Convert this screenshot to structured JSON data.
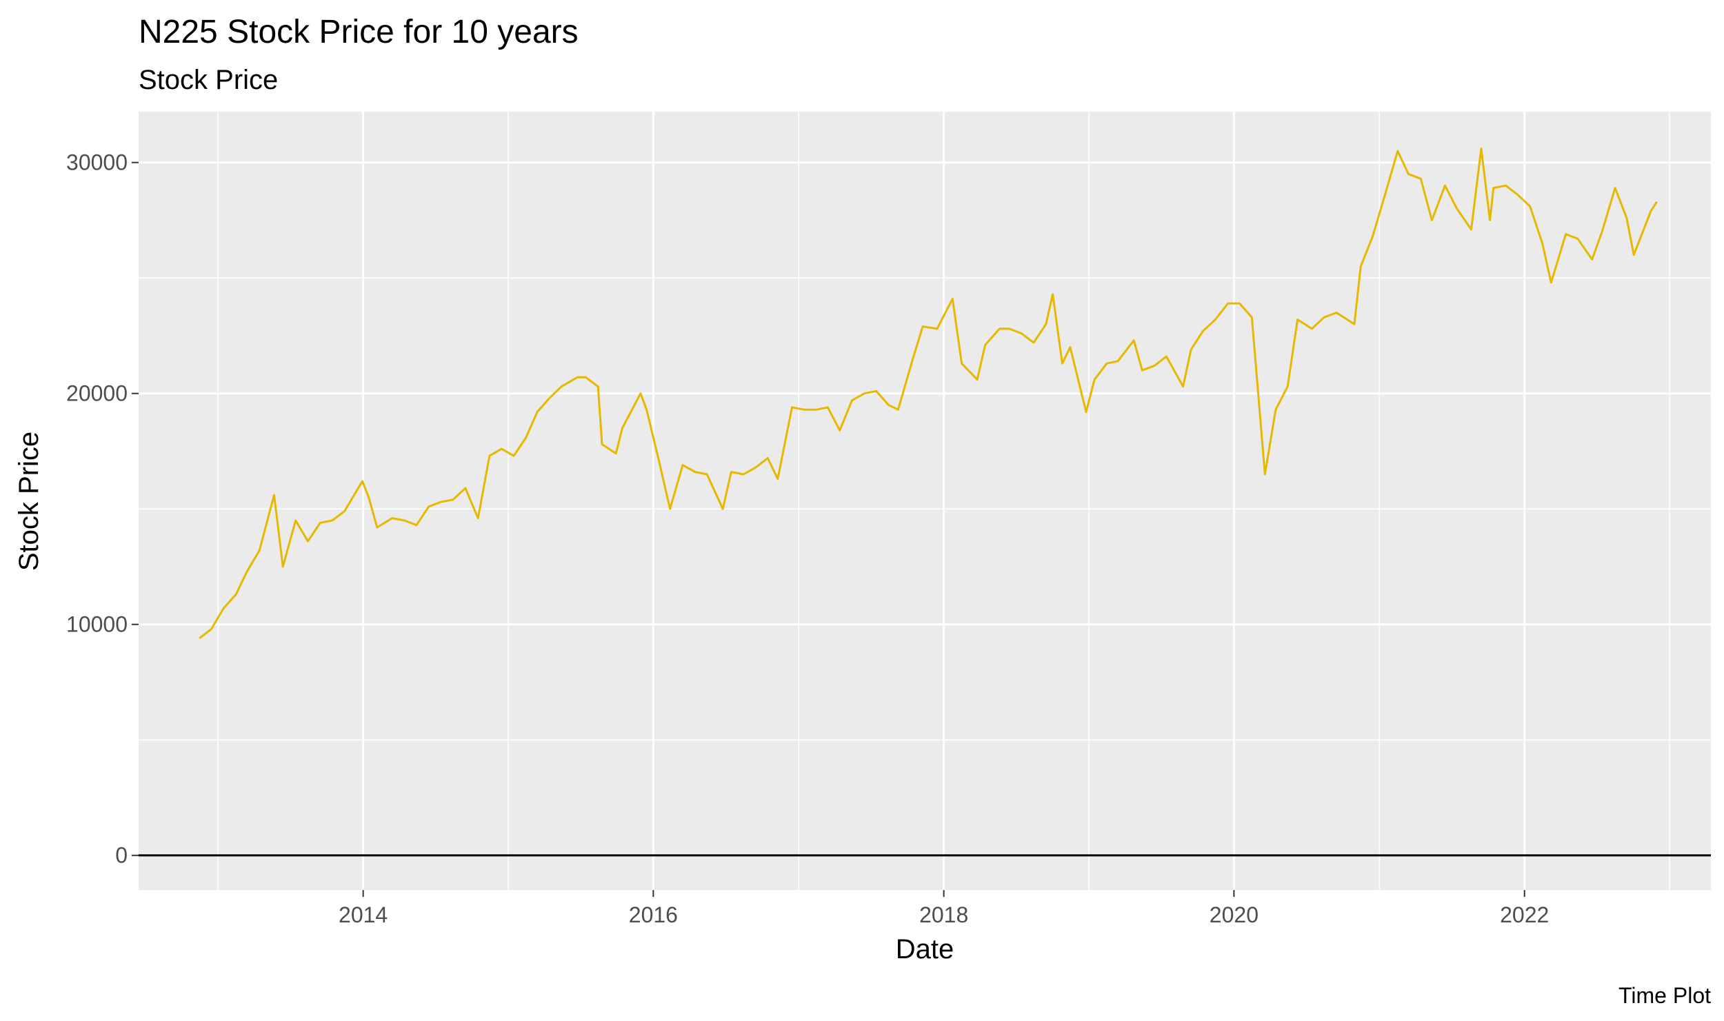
{
  "chart_data": {
    "type": "line",
    "title": "N225 Stock Price for 10 years",
    "subtitle": "Stock Price",
    "xlabel": "Date",
    "ylabel": "Stock Price",
    "caption": "Time Plot",
    "x_tick_labels": [
      "2014",
      "2016",
      "2018",
      "2020",
      "2022"
    ],
    "y_tick_labels": [
      "0",
      "10000",
      "20000",
      "30000"
    ],
    "xlim": [
      "2012-06-15",
      "2023-04-15"
    ],
    "ylim": [
      -1500,
      32200
    ],
    "grid": true,
    "reference_line_y": 0,
    "colors": {
      "line": "#E7B800",
      "panel": "#EBEBEB",
      "grid": "#FFFFFF",
      "reference": "#000000"
    },
    "series": [
      {
        "x": [
          "2012-11-15",
          "2012-12-15",
          "2013-01-15",
          "2013-02-15",
          "2013-03-15",
          "2013-04-15",
          "2013-05-22",
          "2013-06-13",
          "2013-07-15",
          "2013-08-15",
          "2013-09-15",
          "2013-10-15",
          "2013-11-15",
          "2013-12-30",
          "2014-01-15",
          "2014-02-05",
          "2014-03-15",
          "2014-04-15",
          "2014-05-15",
          "2014-06-15",
          "2014-07-15",
          "2014-08-15",
          "2014-09-15",
          "2014-10-17",
          "2014-11-15",
          "2014-12-15",
          "2015-01-15",
          "2015-02-15",
          "2015-03-15",
          "2015-04-15",
          "2015-05-15",
          "2015-06-24",
          "2015-07-15",
          "2015-08-15",
          "2015-08-25",
          "2015-09-29",
          "2015-10-15",
          "2015-11-30",
          "2015-12-15",
          "2016-01-15",
          "2016-02-12",
          "2016-03-15",
          "2016-04-15",
          "2016-05-15",
          "2016-06-24",
          "2016-07-15",
          "2016-08-15",
          "2016-09-15",
          "2016-10-15",
          "2016-11-09",
          "2016-12-15",
          "2017-01-15",
          "2017-02-15",
          "2017-03-15",
          "2017-04-14",
          "2017-05-15",
          "2017-06-15",
          "2017-07-15",
          "2017-08-15",
          "2017-09-08",
          "2017-10-15",
          "2017-11-09",
          "2017-12-15",
          "2018-01-23",
          "2018-02-15",
          "2018-03-26",
          "2018-04-15",
          "2018-05-21",
          "2018-06-15",
          "2018-07-15",
          "2018-08-15",
          "2018-09-15",
          "2018-10-02",
          "2018-10-26",
          "2018-11-15",
          "2018-12-25",
          "2019-01-15",
          "2019-02-15",
          "2019-03-15",
          "2019-04-24",
          "2019-05-15",
          "2019-06-15",
          "2019-07-15",
          "2019-08-26",
          "2019-09-15",
          "2019-10-15",
          "2019-11-15",
          "2019-12-17",
          "2020-01-15",
          "2020-02-15",
          "2020-03-19",
          "2020-04-15",
          "2020-05-15",
          "2020-06-09",
          "2020-07-15",
          "2020-08-15",
          "2020-09-15",
          "2020-10-30",
          "2020-11-15",
          "2020-12-15",
          "2021-01-15",
          "2021-02-16",
          "2021-03-15",
          "2021-04-15",
          "2021-05-13",
          "2021-06-15",
          "2021-07-15",
          "2021-08-20",
          "2021-09-14",
          "2021-10-06",
          "2021-10-15",
          "2021-11-15",
          "2021-12-15",
          "2022-01-15",
          "2022-02-15",
          "2022-03-09",
          "2022-04-15",
          "2022-05-15",
          "2022-06-20",
          "2022-07-15",
          "2022-08-17",
          "2022-09-15",
          "2022-10-03",
          "2022-11-15",
          "2022-11-30"
        ],
        "y": [
          9400,
          9800,
          10700,
          11300,
          12300,
          13200,
          15600,
          12500,
          14500,
          13600,
          14400,
          14500,
          14900,
          16200,
          15500,
          14200,
          14600,
          14500,
          14300,
          15100,
          15300,
          15400,
          15900,
          14600,
          17300,
          17600,
          17300,
          18100,
          19200,
          19800,
          20300,
          20700,
          20700,
          20300,
          17800,
          17400,
          18500,
          20000,
          19300,
          17100,
          15000,
          16900,
          16600,
          16500,
          15000,
          16600,
          16500,
          16800,
          17200,
          16300,
          19400,
          19300,
          19300,
          19400,
          18400,
          19700,
          20000,
          20100,
          19500,
          19300,
          21500,
          22900,
          22800,
          24100,
          21300,
          20600,
          22100,
          22800,
          22800,
          22600,
          22200,
          23000,
          24300,
          21300,
          22000,
          19200,
          20600,
          21300,
          21400,
          22300,
          21000,
          21200,
          21600,
          20300,
          21900,
          22700,
          23200,
          23900,
          23900,
          23300,
          16500,
          19300,
          20300,
          23200,
          22800,
          23300,
          23500,
          23000,
          25500,
          26800,
          28600,
          30500,
          29500,
          29300,
          27500,
          29000,
          28000,
          27100,
          30600,
          27500,
          28900,
          29000,
          28600,
          28100,
          26500,
          24800,
          26900,
          26700,
          25800,
          27000,
          28900,
          27600,
          26000,
          27900,
          28300
        ]
      }
    ]
  }
}
